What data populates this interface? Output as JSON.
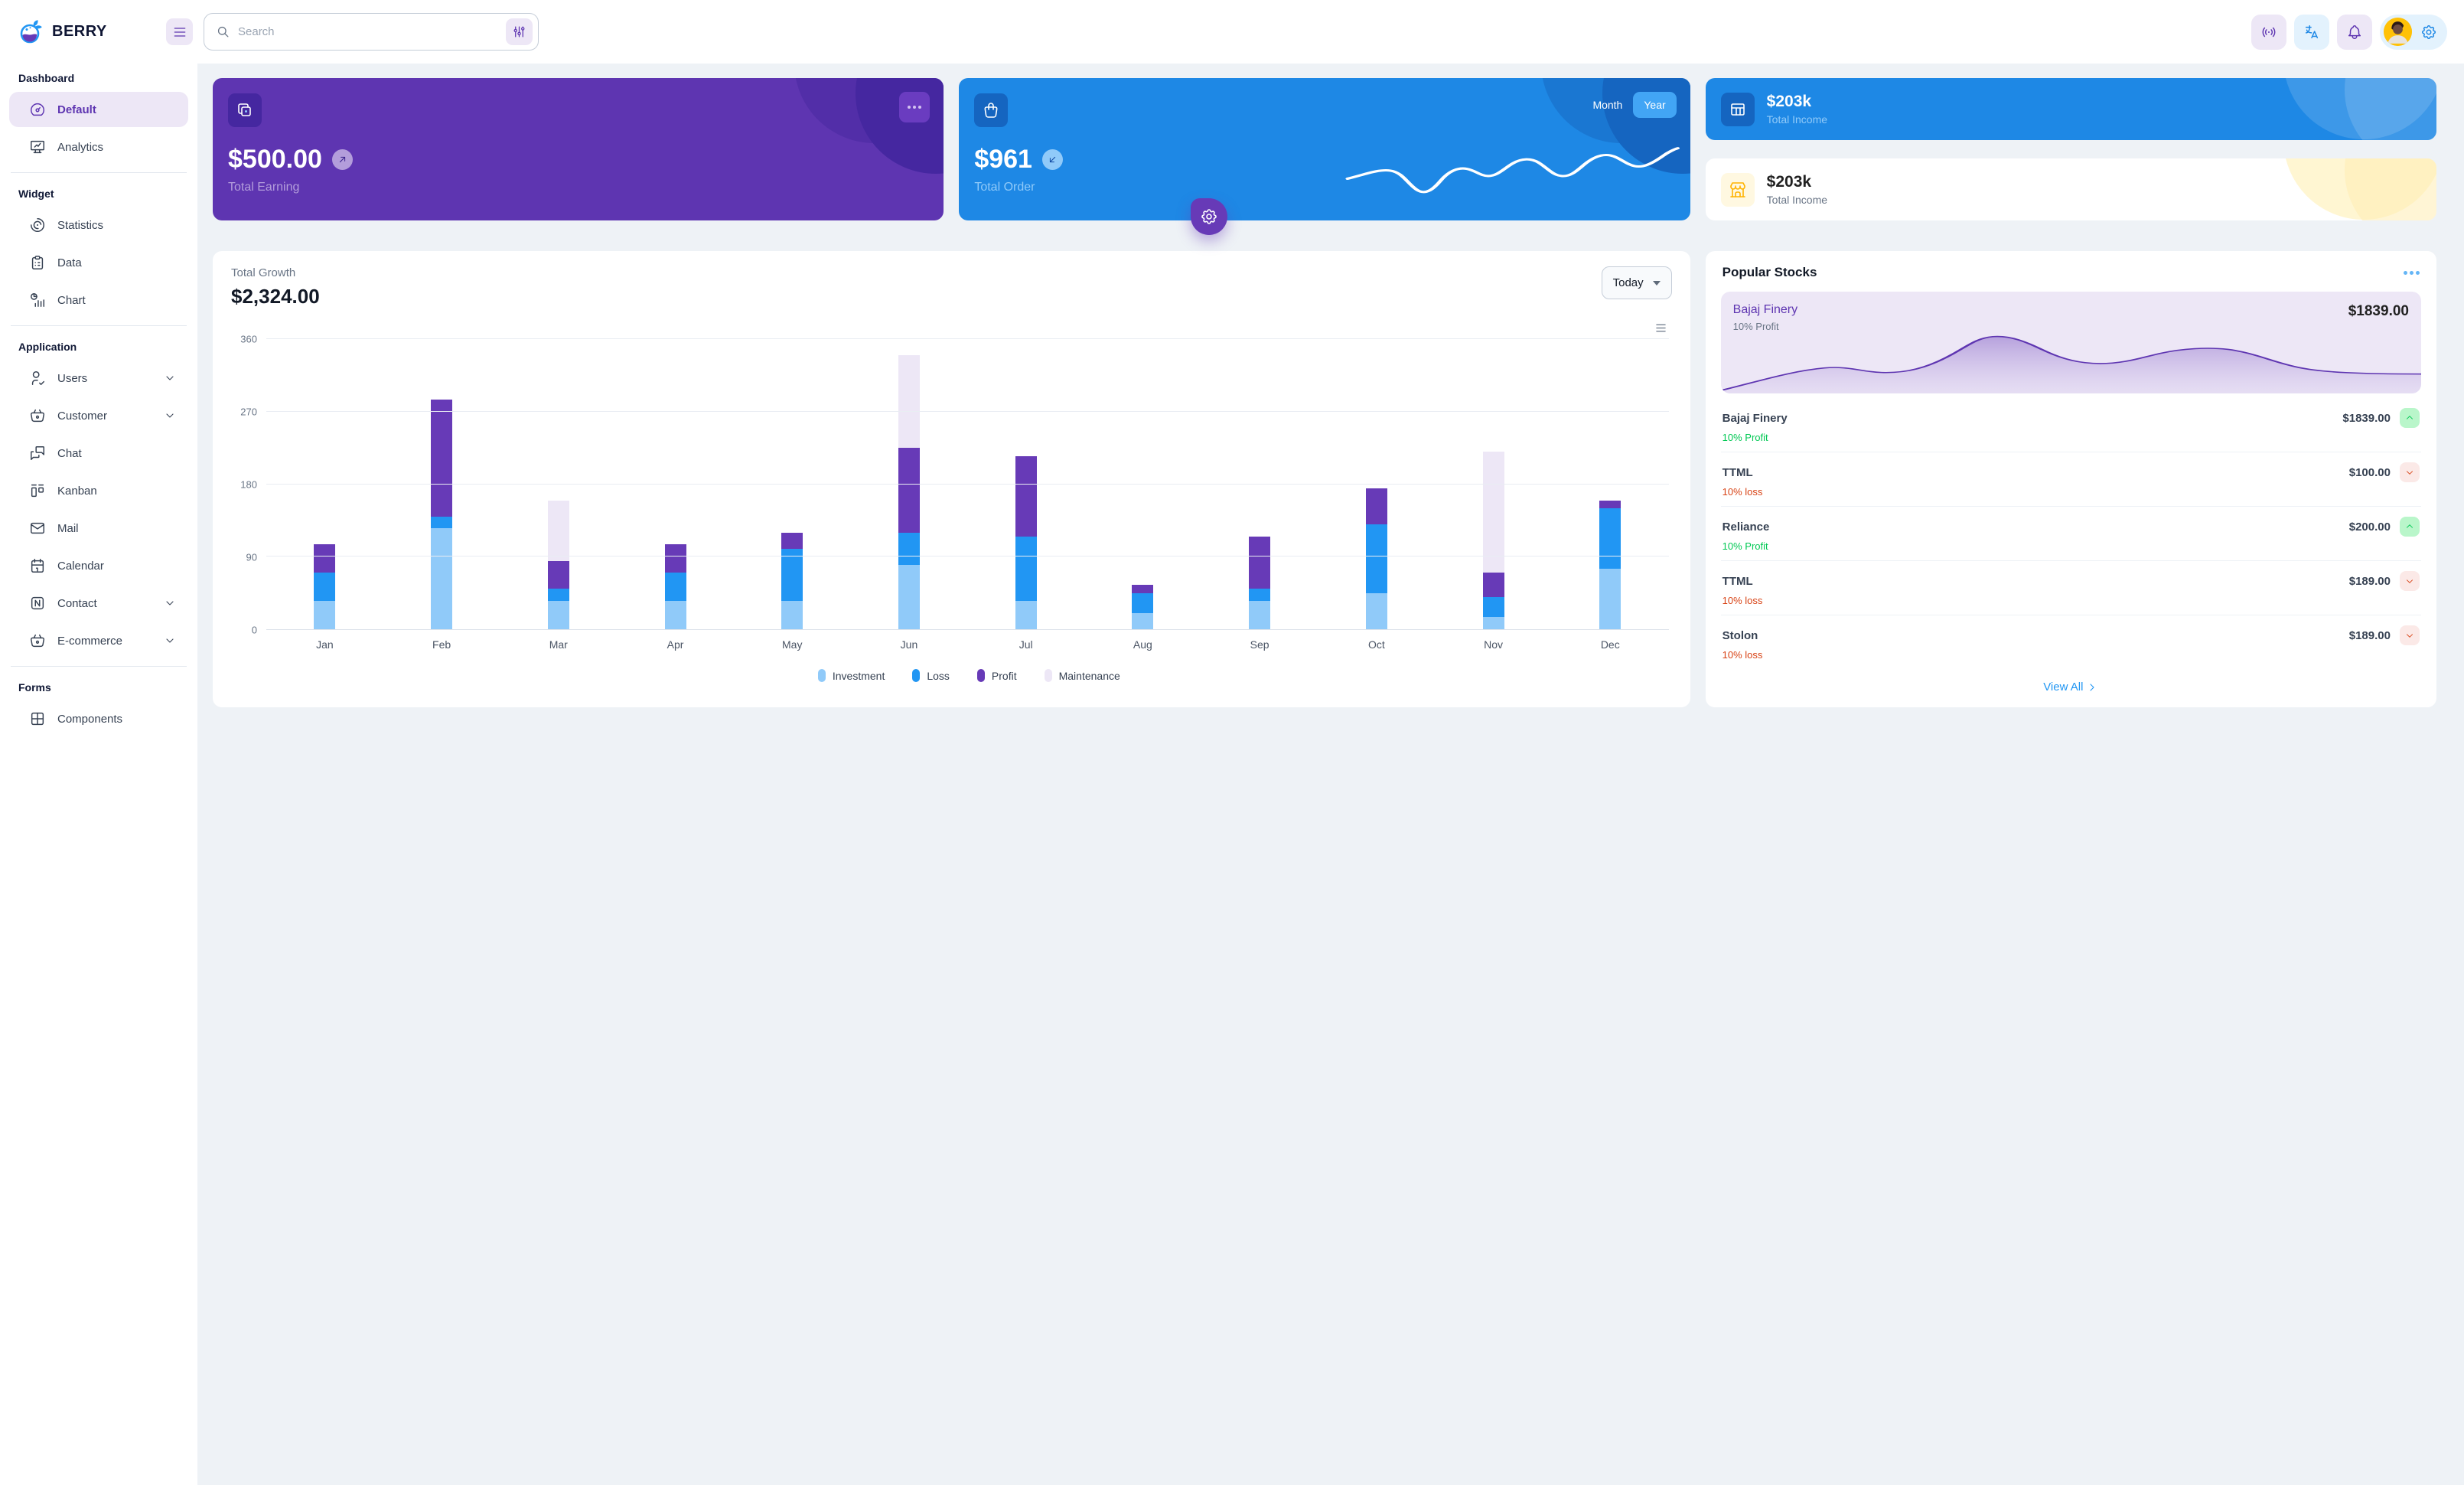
{
  "brand": {
    "name": "BERRY"
  },
  "header": {
    "search_placeholder": "Search"
  },
  "sidebar": {
    "sections": [
      {
        "heading": "Dashboard",
        "items": [
          {
            "label": "Default"
          },
          {
            "label": "Analytics"
          }
        ]
      },
      {
        "heading": "Widget",
        "items": [
          {
            "label": "Statistics"
          },
          {
            "label": "Data"
          },
          {
            "label": "Chart"
          }
        ]
      },
      {
        "heading": "Application",
        "items": [
          {
            "label": "Users"
          },
          {
            "label": "Customer"
          },
          {
            "label": "Chat"
          },
          {
            "label": "Kanban"
          },
          {
            "label": "Mail"
          },
          {
            "label": "Calendar"
          },
          {
            "label": "Contact"
          },
          {
            "label": "E-commerce"
          }
        ]
      },
      {
        "heading": "Forms",
        "items": [
          {
            "label": "Components"
          }
        ]
      }
    ]
  },
  "cards": {
    "earning": {
      "value": "$500.00",
      "label": "Total Earning"
    },
    "order": {
      "value": "$961",
      "label": "Total Order",
      "toggle": {
        "month": "Month",
        "year": "Year",
        "selected": "Year"
      }
    },
    "income_dark": {
      "value": "$203k",
      "label": "Total Income"
    },
    "income_light": {
      "value": "$203k",
      "label": "Total Income"
    }
  },
  "growth": {
    "title": "Total Growth",
    "value": "$2,324.00",
    "range": "Today"
  },
  "chart_data": {
    "type": "bar",
    "stacked": true,
    "title": "Total Growth",
    "categories": [
      "Jan",
      "Feb",
      "Mar",
      "Apr",
      "May",
      "Jun",
      "Jul",
      "Aug",
      "Sep",
      "Oct",
      "Nov",
      "Dec"
    ],
    "series": [
      {
        "name": "Investment",
        "color": "#90caf9",
        "values": [
          35,
          125,
          35,
          35,
          35,
          80,
          35,
          20,
          35,
          45,
          15,
          75
        ]
      },
      {
        "name": "Loss",
        "color": "#2196f3",
        "values": [
          35,
          15,
          15,
          35,
          65,
          40,
          80,
          25,
          15,
          85,
          25,
          75
        ]
      },
      {
        "name": "Profit",
        "color": "#673ab7",
        "values": [
          35,
          145,
          35,
          35,
          20,
          105,
          100,
          10,
          65,
          45,
          30,
          10
        ]
      },
      {
        "name": "Maintenance",
        "color": "#ede7f6",
        "values": [
          0,
          0,
          75,
          0,
          0,
          115,
          0,
          0,
          0,
          0,
          150,
          0
        ]
      }
    ],
    "yticks": [
      0,
      90,
      180,
      270,
      360
    ],
    "ylim": [
      0,
      360
    ],
    "grid": true,
    "legend_position": "bottom"
  },
  "stocks": {
    "title": "Popular Stocks",
    "featured": {
      "name": "Bajaj Finery",
      "price": "$1839.00",
      "sub": "10% Profit"
    },
    "items": [
      {
        "name": "Bajaj Finery",
        "price": "$1839.00",
        "sub": "10% Profit",
        "direction": "up"
      },
      {
        "name": "TTML",
        "price": "$100.00",
        "sub": "10% loss",
        "direction": "down"
      },
      {
        "name": "Reliance",
        "price": "$200.00",
        "sub": "10% Profit",
        "direction": "up"
      },
      {
        "name": "TTML",
        "price": "$189.00",
        "sub": "10% loss",
        "direction": "down"
      },
      {
        "name": "Stolon",
        "price": "$189.00",
        "sub": "10% loss",
        "direction": "down"
      }
    ],
    "view_all": "View All"
  },
  "icons": {
    "logo": "berry-fruit",
    "menu": "hamburger",
    "search": "magnifier",
    "filter": "sliders",
    "broadcast": "radio-waves",
    "language": "translate",
    "notifications": "bell",
    "settings": "gear",
    "earning": "copy-squares",
    "order": "shopping-bag",
    "income_dark": "table-grid",
    "income_light": "storefront",
    "trend_up": "chevron-up",
    "trend_down": "chevron-down",
    "more": "three-dots",
    "view_all": "chevron-right"
  },
  "colors": {
    "primary": "#2196f3",
    "secondary": "#673ab7",
    "purple_dark": "#5e35b1",
    "purple_light": "#ede7f6",
    "blue_dark": "#1e88e5",
    "blue_light": "#e3f2fd",
    "success": "#00c853",
    "error": "#d84315",
    "warning": "#ffb300",
    "page_bg": "#eef2f6",
    "text": "#121926",
    "text_muted": "#697586"
  }
}
